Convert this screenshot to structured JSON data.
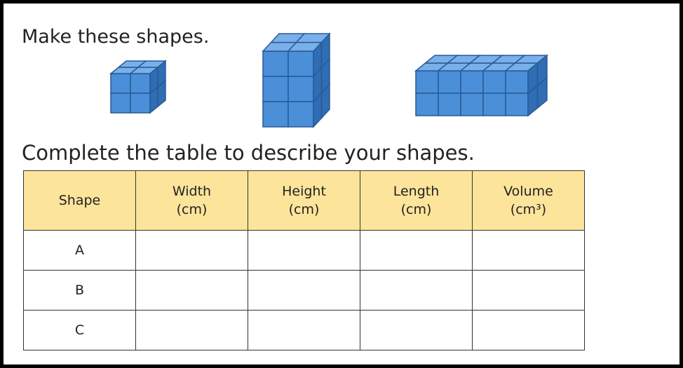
{
  "instructions": [
    "Make these shapes.",
    "Complete the table to describe your shapes."
  ],
  "table": {
    "headers": [
      [
        "Shape"
      ],
      [
        "Width",
        "(cm)"
      ],
      [
        "Height",
        "(cm)"
      ],
      [
        "Length",
        "(cm)"
      ],
      [
        "Volume",
        "(cm³)"
      ]
    ],
    "rows": [
      "A",
      "B",
      "C"
    ]
  }
}
